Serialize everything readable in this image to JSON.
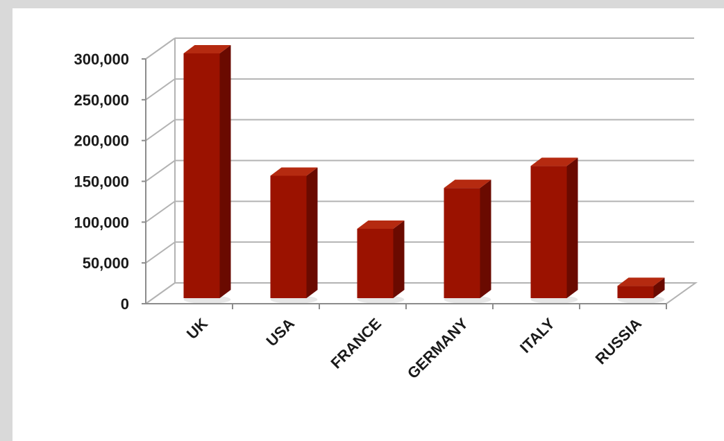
{
  "chart_data": {
    "type": "bar",
    "categories": [
      "UK",
      "USA",
      "FRANCE",
      "GERMANY",
      "ITALY",
      "RUSSIA"
    ],
    "values": [
      300000,
      150000,
      85000,
      135000,
      162000,
      15000
    ],
    "y_ticks": [
      "0",
      "50,000",
      "100,000",
      "150,000",
      "200,000",
      "250,000",
      "300,000"
    ],
    "ylim": [
      0,
      300000
    ],
    "grid": true,
    "three_d": true,
    "colors": {
      "bar_front": "#9b1200",
      "bar_side": "#6a0a00",
      "bar_top": "#b52a10",
      "grid": "#b3b3b3"
    }
  }
}
